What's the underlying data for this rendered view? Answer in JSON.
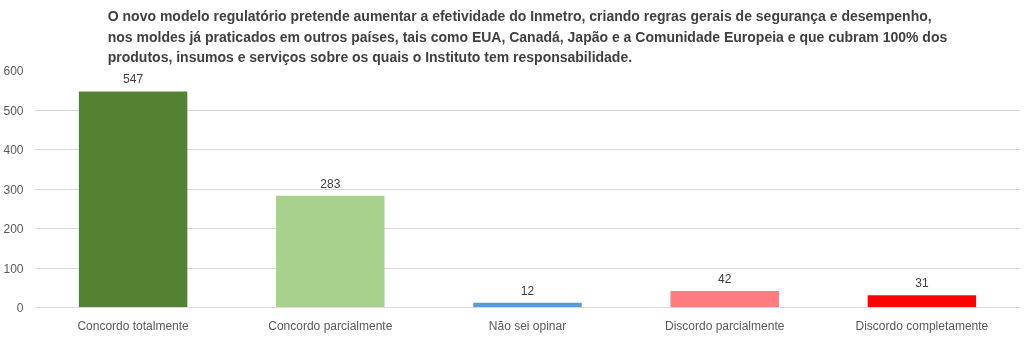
{
  "chart_data": {
    "type": "bar",
    "title": "O novo modelo regulatório pretende aumentar a efetividade do Inmetro, criando regras gerais de segurança e desempenho, nos moldes já praticados em outros países, tais como EUA, Canadá, Japão e a Comunidade Europeia e que cubram 100% dos produtos, insumos e serviços sobre os quais o Instituto tem responsabilidade.",
    "categories": [
      "Concordo totalmente",
      "Concordo parcialmente",
      "Não sei opinar",
      "Discordo parcialmente",
      "Discordo completamente"
    ],
    "values": [
      547,
      283,
      12,
      42,
      31
    ],
    "colors": [
      "#548235",
      "#a9d18e",
      "#5b9bd5",
      "#ff7c80",
      "#ff0000"
    ],
    "ylim": [
      0,
      600
    ],
    "yticks": [
      0,
      100,
      200,
      300,
      400,
      500,
      600
    ],
    "grid": "y",
    "data_labels": true
  }
}
